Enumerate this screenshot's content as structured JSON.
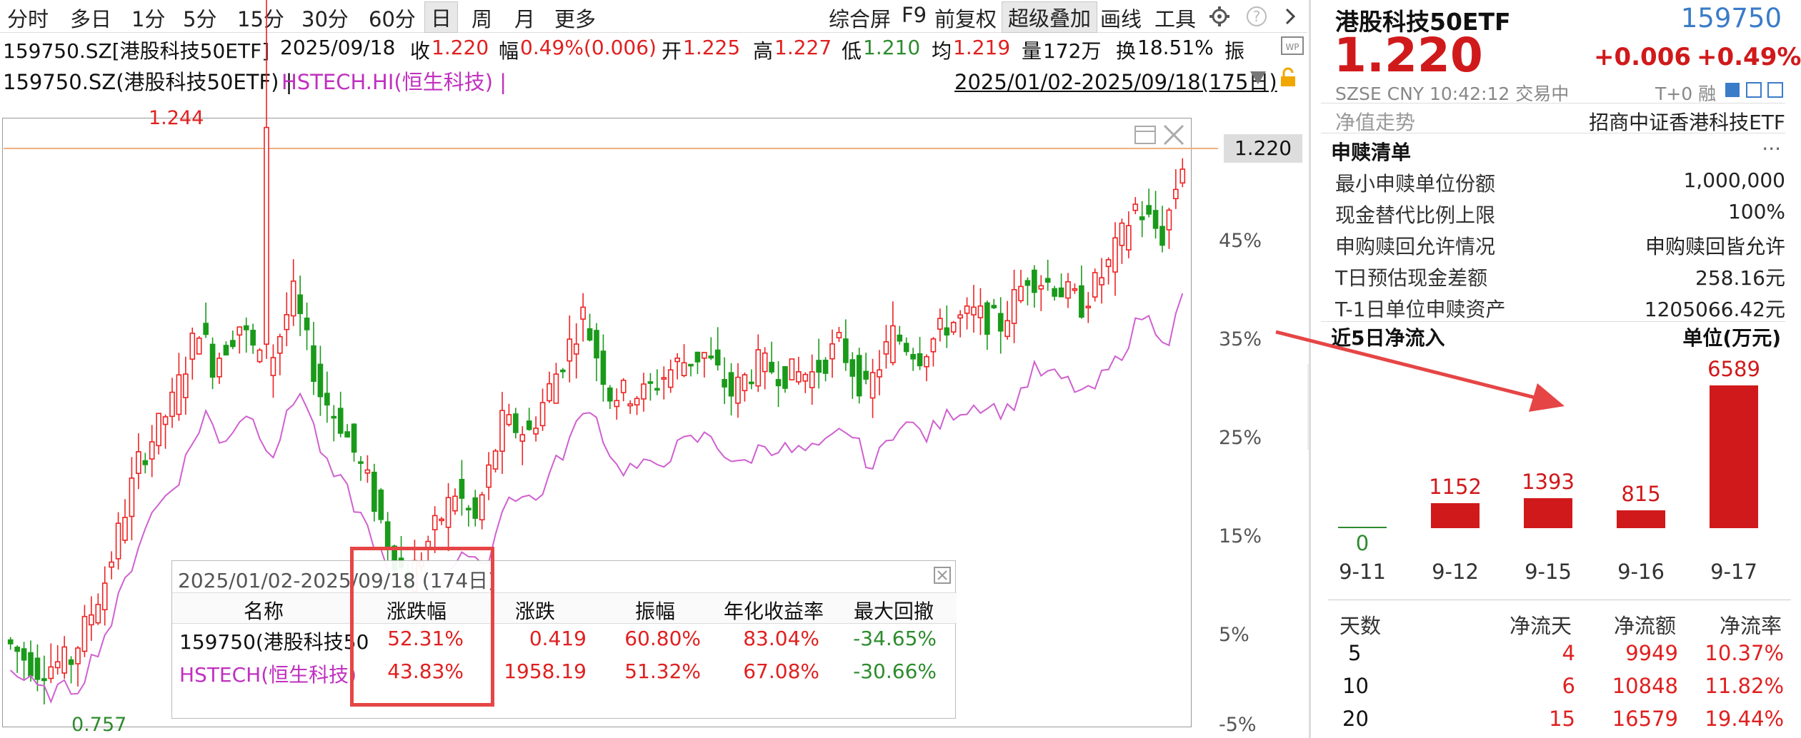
{
  "toolbar": {
    "periods": [
      "分时",
      "多日",
      "1分",
      "5分",
      "15分",
      "30分",
      "60分",
      "日",
      "周",
      "月",
      "更多"
    ],
    "active_period": "日",
    "right_tools": [
      "综合屏",
      "F9",
      "前复权",
      "超级叠加",
      "画线",
      "工具"
    ]
  },
  "quote_line": {
    "code_name": "159750.SZ[港股科技50ETF]",
    "date": "2025/09/18",
    "close_label": "收",
    "close": "1.220",
    "change_label": "幅",
    "change": "0.49%(0.006)",
    "open_label": "开",
    "open": "1.225",
    "high_label": "高",
    "high": "1.227",
    "low_label": "低",
    "low": "1.210",
    "avg_label": "均",
    "avg": "1.219",
    "vol_label": "量",
    "vol": "172万",
    "turn_label": "换",
    "turn": "18.51%",
    "amp_label": "振"
  },
  "overlay_line": {
    "primary": "159750.SZ(港股科技50ETF) | ",
    "secondary": "HSTECH.HI(恒生科技) |",
    "range": "2025/01/02-2025/09/18(175日)"
  },
  "chart": {
    "high_label": "1.244",
    "low_label": "0.757",
    "last_price": "1.220",
    "y_axis": [
      "45%",
      "35%",
      "25%",
      "15%",
      "5%",
      "-5%"
    ]
  },
  "chart_data": {
    "type": "candlestick",
    "y_axis_ticks": [
      "45%",
      "35%",
      "25%",
      "15%",
      "5%",
      "-5%"
    ],
    "series": [
      {
        "name": "159750.SZ(港股科技50ETF)",
        "return_end": 52.31
      },
      {
        "name": "HSTECH.HI(恒生科技)",
        "return_end": 43.83
      }
    ]
  },
  "stats_box": {
    "title": "2025/01/02-2025/09/18 (174日)",
    "headers": [
      "名称",
      "涨跌幅",
      "涨跌",
      "振幅",
      "年化收益率",
      "最大回撤"
    ],
    "rows": [
      {
        "name": "159750(港股科技50",
        "pct": "52.31%",
        "chg": "0.419",
        "amp": "60.80%",
        "ann": "83.04%",
        "dd": "-34.65%"
      },
      {
        "name": "HSTECH(恒生科技)",
        "pct": "43.83%",
        "chg": "1958.19",
        "amp": "51.32%",
        "ann": "67.08%",
        "dd": "-30.66%"
      }
    ]
  },
  "right": {
    "title": "港股科技50ETF",
    "code": "159750",
    "price": "1.220",
    "change": "+0.006",
    "change_pct": "+0.49%",
    "exchange_line": "SZSE  CNY  10:42:12  交易中",
    "t0": "T+0 融",
    "nav_label": "净值走势",
    "nav_value": "招商中证香港科技ETF",
    "redeem_title": "申赎清单",
    "more": "···",
    "items": [
      {
        "label": "最小申赎单位份额",
        "value": "1,000,000"
      },
      {
        "label": "现金替代比例上限",
        "value": "100%"
      },
      {
        "label": "申购赎回允许情况",
        "value": "申购赎回皆允许"
      },
      {
        "label": "T日预估现金差额",
        "value": "258.16元"
      },
      {
        "label": "T-1日单位申赎资产",
        "value": "1205066.42元"
      }
    ],
    "flow_title": "近5日净流入",
    "flow_unit": "单位(万元)",
    "flows": [
      {
        "date": "9-11",
        "value": 0
      },
      {
        "date": "9-12",
        "value": 1152
      },
      {
        "date": "9-15",
        "value": 1393
      },
      {
        "date": "9-16",
        "value": 815
      },
      {
        "date": "9-17",
        "value": 6589
      }
    ],
    "flow_table": {
      "headers": [
        "天数",
        "净流天",
        "净流额",
        "净流率"
      ],
      "rows": [
        [
          "5",
          "4",
          "9949",
          "10.37%"
        ],
        [
          "10",
          "6",
          "10848",
          "11.82%"
        ],
        [
          "20",
          "15",
          "16579",
          "19.44%"
        ]
      ]
    }
  }
}
